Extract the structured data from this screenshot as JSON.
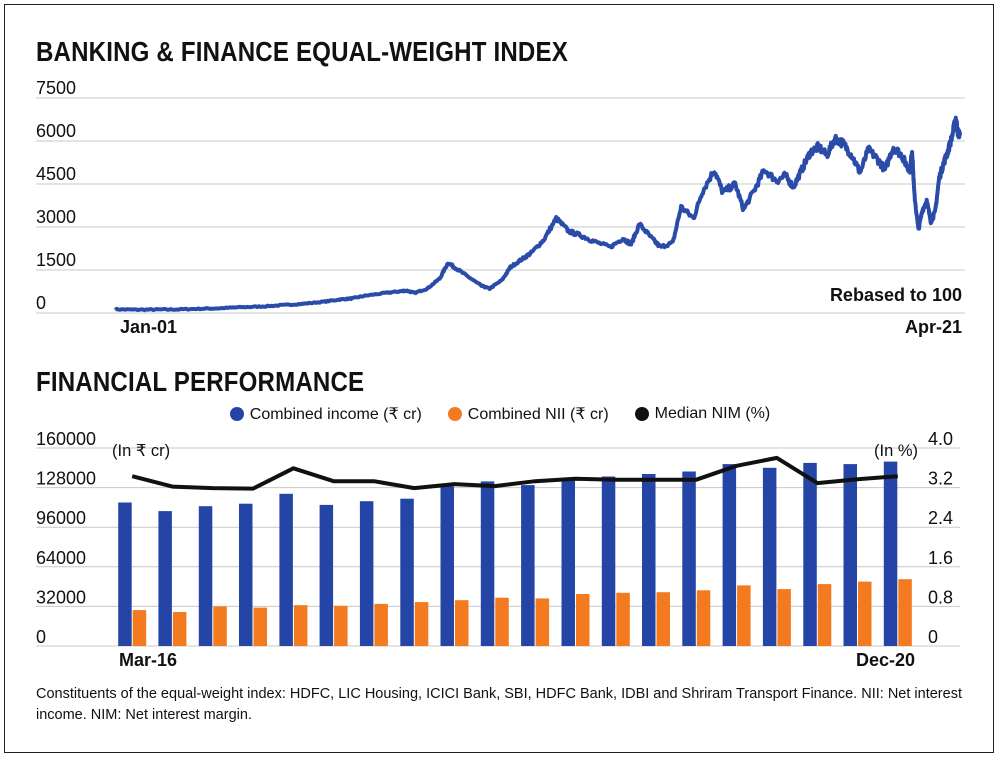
{
  "header": {
    "title": "BANKING & FINANCE EQUAL-WEIGHT INDEX"
  },
  "section2": {
    "title": "FINANCIAL PERFORMANCE"
  },
  "footnote": "Constituents of the equal-weight index: HDFC, LIC Housing, ICICI Bank, SBI, HDFC Bank, IDBI and Shriram Transport Finance. NII: Net interest income. NIM: Net interest margin.",
  "colors": {
    "income": "#2445a6",
    "nii": "#f47a20",
    "nim": "#111111",
    "index": "#2a4ca8",
    "grid": "#c8c8c8"
  },
  "chart_data": [
    {
      "type": "line",
      "title": "BANKING & FINANCE EQUAL-WEIGHT INDEX",
      "annotation": "Rebased to 100",
      "x_start_label": "Jan-01",
      "x_end_label": "Apr-21",
      "yticks": [
        0,
        1500,
        3000,
        4500,
        6000,
        7500
      ],
      "ylim": [
        0,
        7500
      ],
      "grid": "horizontal",
      "x": [
        2001.0,
        2001.5,
        2002.0,
        2002.5,
        2003.0,
        2003.5,
        2004.0,
        2004.5,
        2005.0,
        2005.5,
        2006.0,
        2006.4,
        2006.7,
        2007.0,
        2007.5,
        2007.8,
        2008.0,
        2008.2,
        2008.5,
        2008.8,
        2009.0,
        2009.2,
        2009.5,
        2009.8,
        2010.0,
        2010.3,
        2010.5,
        2010.8,
        2011.0,
        2011.3,
        2011.6,
        2011.9,
        2012.2,
        2012.5,
        2012.9,
        2013.2,
        2013.4,
        2013.6,
        2013.9,
        2014.1,
        2014.4,
        2014.6,
        2014.9,
        2015.1,
        2015.4,
        2015.6,
        2015.9,
        2016.1,
        2016.4,
        2016.6,
        2016.9,
        2017.1,
        2017.3,
        2017.5,
        2017.7,
        2017.9,
        2018.1,
        2018.3,
        2018.5,
        2018.7,
        2018.9,
        2019.1,
        2019.3,
        2019.5,
        2019.7,
        2019.9,
        2020.0,
        2020.1,
        2020.15,
        2020.2,
        2020.3,
        2020.4,
        2020.5,
        2020.6,
        2020.7,
        2020.8,
        2020.9,
        2021.0,
        2021.1,
        2021.2,
        2021.25,
        2021.3
      ],
      "y": [
        130,
        115,
        120,
        125,
        145,
        165,
        200,
        225,
        270,
        320,
        390,
        470,
        510,
        600,
        700,
        750,
        780,
        700,
        850,
        1200,
        1750,
        1550,
        1250,
        950,
        850,
        1150,
        1600,
        1900,
        2100,
        2550,
        3300,
        2850,
        2700,
        2500,
        2300,
        2600,
        2400,
        3100,
        2600,
        2300,
        2450,
        3700,
        3300,
        4200,
        5000,
        4200,
        4500,
        3600,
        4400,
        5000,
        4600,
        4800,
        4400,
        5000,
        5600,
        5800,
        5500,
        6100,
        5900,
        5500,
        4900,
        5700,
        5400,
        5000,
        5800,
        5500,
        5200,
        5000,
        5700,
        4200,
        2900,
        3600,
        3900,
        3200,
        3500,
        4700,
        5200,
        5600,
        6100,
        6800,
        6300,
        6200
      ]
    },
    {
      "type": "bar",
      "title": "FINANCIAL PERFORMANCE",
      "x_start_label": "Mar-16",
      "x_end_label": "Dec-20",
      "left_unit": "(In ₹ cr)",
      "right_unit": "(In %)",
      "yticks_left": [
        0,
        32000,
        64000,
        96000,
        128000,
        160000
      ],
      "yticks_right": [
        "0",
        "0.8",
        "1.6",
        "2.4",
        "3.2",
        "4.0"
      ],
      "ylim": [
        0,
        160000
      ],
      "ylim_right": [
        0,
        4.0
      ],
      "legend_position": "top",
      "grid": "horizontal",
      "series": [
        {
          "name": "Combined income (₹ cr)",
          "kind": "bar",
          "values": [
            116000,
            109000,
            113000,
            115000,
            123000,
            114000,
            117000,
            119000,
            129000,
            133000,
            130000,
            136000,
            137000,
            139000,
            141000,
            147000,
            144000,
            148000,
            147000,
            149000
          ]
        },
        {
          "name": "Combined NII  (₹ cr)",
          "kind": "bar",
          "values": [
            29000,
            27500,
            32000,
            31000,
            33000,
            32500,
            34000,
            35500,
            37000,
            39000,
            38500,
            42000,
            43000,
            43500,
            45000,
            49000,
            46000,
            50000,
            52000,
            54000
          ]
        },
        {
          "name": "Median NIM (%)",
          "kind": "line",
          "values": [
            3.43,
            3.22,
            3.19,
            3.18,
            3.59,
            3.33,
            3.33,
            3.19,
            3.27,
            3.23,
            3.33,
            3.38,
            3.36,
            3.36,
            3.36,
            3.64,
            3.8,
            3.29,
            3.37,
            3.43
          ]
        }
      ]
    }
  ]
}
